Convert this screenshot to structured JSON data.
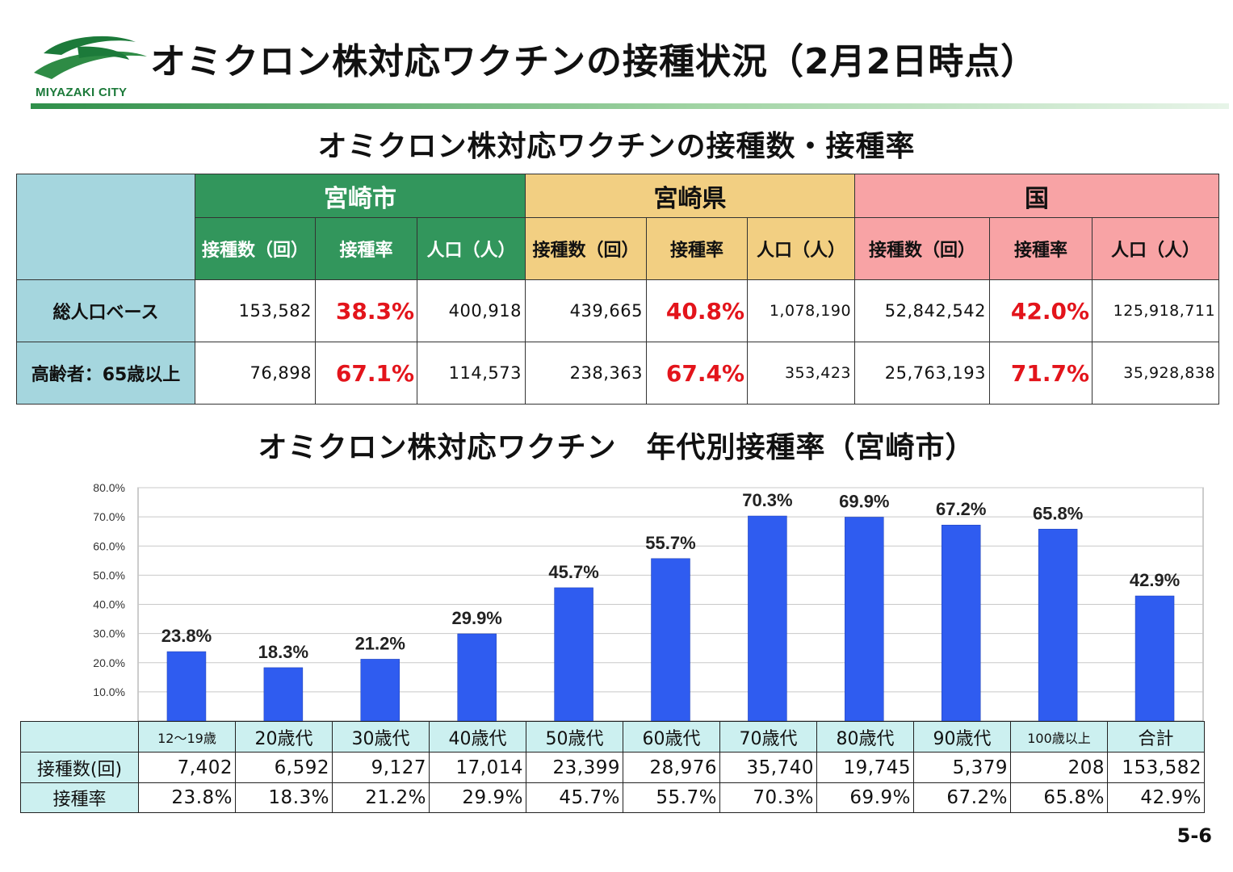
{
  "header": {
    "logo_text": "MIYAZAKI CITY",
    "title": "オミクロン株対応ワクチンの接種状況（2月2日時点）",
    "brand_color": "#1c7a3a"
  },
  "table_title": "オミクロン株対応ワクチンの接種数・接種率",
  "vaccination_table": {
    "groups": [
      {
        "name": "宮崎市",
        "color": "#32965c"
      },
      {
        "name": "宮崎県",
        "color": "#f2cf82"
      },
      {
        "name": "国",
        "color": "#f8a3a5"
      }
    ],
    "columns": [
      "接種数（回）",
      "接種率",
      "人口（人）"
    ],
    "rows": [
      {
        "label": "総人口ベース",
        "miyazaki": {
          "count": "153,582",
          "rate": "38.3%",
          "population": "400,918"
        },
        "pref": {
          "count": "439,665",
          "rate": "40.8%",
          "population": "1,078,190"
        },
        "nation": {
          "count": "52,842,542",
          "rate": "42.0%",
          "population": "125,918,711"
        }
      },
      {
        "label": "高齢者：65歳以上",
        "miyazaki": {
          "count": "76,898",
          "rate": "67.1%",
          "population": "114,573"
        },
        "pref": {
          "count": "238,363",
          "rate": "67.4%",
          "population": "353,423"
        },
        "nation": {
          "count": "25,763,193",
          "rate": "71.7%",
          "population": "35,928,838"
        }
      }
    ],
    "rate_color": "#e3141b"
  },
  "chart_title": "オミクロン株対応ワクチン　年代別接種率（宮崎市）",
  "chart_data": {
    "type": "bar",
    "title": "オミクロン株対応ワクチン　年代別接種率（宮崎市）",
    "categories": [
      "12～19歳",
      "20歳代",
      "30歳代",
      "40歳代",
      "50歳代",
      "60歳代",
      "70歳代",
      "80歳代",
      "90歳代",
      "100歳以上",
      "合計"
    ],
    "values": [
      23.8,
      18.3,
      21.2,
      29.9,
      45.7,
      55.7,
      70.3,
      69.9,
      67.2,
      65.8,
      42.9
    ],
    "data_labels": [
      "23.8%",
      "18.3%",
      "21.2%",
      "29.9%",
      "45.7%",
      "55.7%",
      "70.3%",
      "69.9%",
      "67.2%",
      "65.8%",
      "42.9%"
    ],
    "ylim": [
      0,
      80
    ],
    "yticks": [
      10,
      20,
      30,
      40,
      50,
      60,
      70,
      80
    ],
    "ytick_labels": [
      "10.0%",
      "20.0%",
      "30.0%",
      "40.0%",
      "50.0%",
      "60.0%",
      "70.0%",
      "80.0%"
    ],
    "xlabel": "",
    "ylabel": "",
    "grid": true,
    "bar_color": "#2f5cf0"
  },
  "age_table": {
    "row_labels": [
      "接種数(回)",
      "接種率"
    ],
    "counts": [
      "7,402",
      "6,592",
      "9,127",
      "17,014",
      "23,399",
      "28,976",
      "35,740",
      "19,745",
      "5,379",
      "208",
      "153,582"
    ],
    "rates": [
      "23.8%",
      "18.3%",
      "21.2%",
      "29.9%",
      "45.7%",
      "55.7%",
      "70.3%",
      "69.9%",
      "67.2%",
      "65.8%",
      "42.9%"
    ]
  },
  "footer": {
    "page_number": "5-6"
  }
}
